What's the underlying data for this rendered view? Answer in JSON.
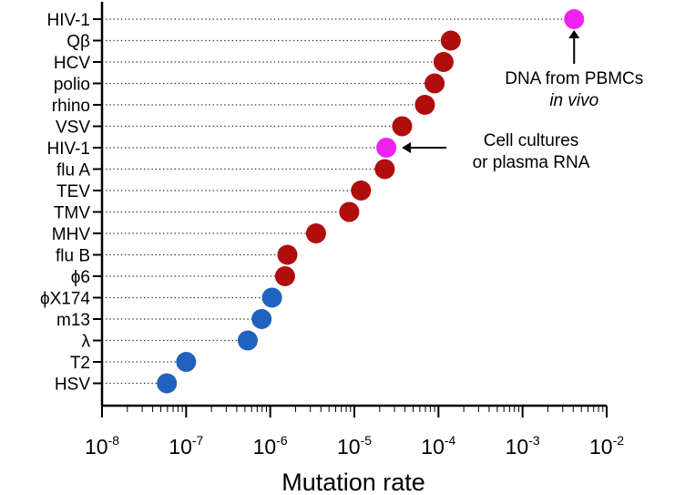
{
  "chart_data": {
    "type": "scatter",
    "title": "",
    "xlabel": "Mutation rate",
    "ylabel": "",
    "x_scale": "log10",
    "xlim": [
      1e-08,
      0.01
    ],
    "x_ticks": [
      {
        "base": "10",
        "exp": "-8",
        "value": 1e-08
      },
      {
        "base": "10",
        "exp": "-7",
        "value": 1e-07
      },
      {
        "base": "10",
        "exp": "-6",
        "value": 1e-06
      },
      {
        "base": "10",
        "exp": "-5",
        "value": 1e-05
      },
      {
        "base": "10",
        "exp": "-4",
        "value": 0.0001
      },
      {
        "base": "10",
        "exp": "-3",
        "value": 0.001
      },
      {
        "base": "10",
        "exp": "-2",
        "value": 0.01
      }
    ],
    "series_colors": {
      "rna_virus": "#b00d0d",
      "dna_virus": "#1f62bf",
      "hiv_highlight": "#ee22ee"
    },
    "points": [
      {
        "label": "HIV-1",
        "value": 0.0041,
        "group": "hiv_highlight"
      },
      {
        "label": "Qβ",
        "value": 0.00014,
        "group": "rna_virus"
      },
      {
        "label": "HCV",
        "value": 0.000115,
        "group": "rna_virus"
      },
      {
        "label": "polio",
        "value": 9e-05,
        "group": "rna_virus"
      },
      {
        "label": "rhino",
        "value": 6.9e-05,
        "group": "rna_virus"
      },
      {
        "label": "VSV",
        "value": 3.7e-05,
        "group": "rna_virus"
      },
      {
        "label": "HIV-1",
        "value": 2.4e-05,
        "group": "hiv_highlight"
      },
      {
        "label": "flu A",
        "value": 2.3e-05,
        "group": "rna_virus"
      },
      {
        "label": "TEV",
        "value": 1.2e-05,
        "group": "rna_virus"
      },
      {
        "label": "TMV",
        "value": 8.7e-06,
        "group": "rna_virus"
      },
      {
        "label": "MHV",
        "value": 3.5e-06,
        "group": "rna_virus"
      },
      {
        "label": "flu B",
        "value": 1.6e-06,
        "group": "rna_virus"
      },
      {
        "label": "ϕ6",
        "value": 1.5e-06,
        "group": "rna_virus"
      },
      {
        "label": "ϕX174",
        "value": 1.05e-06,
        "group": "dna_virus"
      },
      {
        "label": "m13",
        "value": 7.9e-07,
        "group": "dna_virus"
      },
      {
        "label": "λ",
        "value": 5.4e-07,
        "group": "dna_virus"
      },
      {
        "label": "T2",
        "value": 1e-07,
        "group": "dna_virus"
      },
      {
        "label": "HSV",
        "value": 5.9e-08,
        "group": "dna_virus"
      }
    ],
    "annotations": [
      {
        "point_index": 0,
        "lines": [
          "DNA from PBMCs",
          "in vivo"
        ],
        "italic_lines": [
          1
        ]
      },
      {
        "point_index": 6,
        "lines": [
          "Cell cultures",
          "or plasma RNA"
        ],
        "italic_lines": []
      }
    ]
  }
}
